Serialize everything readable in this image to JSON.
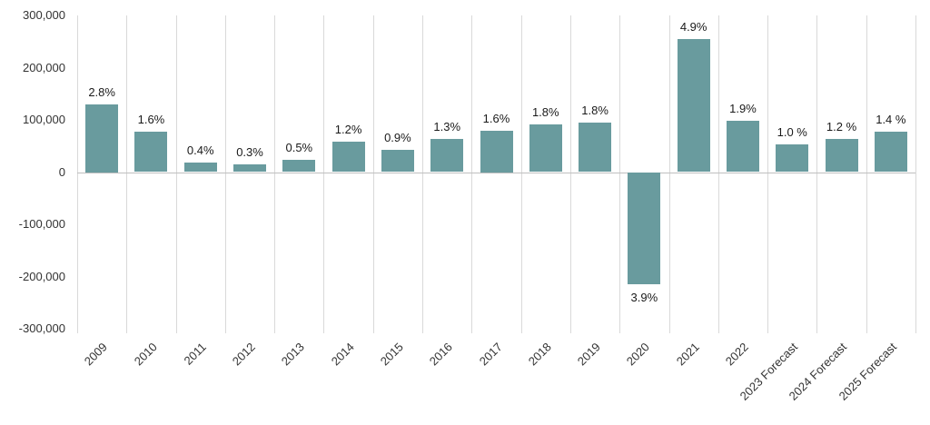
{
  "chart_data": {
    "type": "bar",
    "title": "",
    "xlabel": "",
    "ylabel": "",
    "categories": [
      "2009",
      "2010",
      "2011",
      "2012",
      "2013",
      "2014",
      "2015",
      "2016",
      "2017",
      "2018",
      "2019",
      "2020",
      "2021",
      "2022",
      "2023 Forecast",
      "2024 Forecast",
      "2025 Forecast"
    ],
    "values": [
      130000,
      78000,
      19000,
      14000,
      23000,
      58000,
      43000,
      63000,
      80000,
      92000,
      94000,
      -214000,
      254000,
      98000,
      53000,
      64000,
      77000
    ],
    "bar_labels": [
      "2.8%",
      "1.6%",
      "0.4%",
      "0.3%",
      "0.5%",
      "1.2%",
      "0.9%",
      "1.3%",
      "1.6%",
      "1.8%",
      "1.8%",
      "3.9%",
      "4.9%",
      "1.9%",
      "1.0 %",
      "1.2 %",
      "1.4 %"
    ],
    "ylim": [
      -300000,
      300000
    ],
    "yticks": {
      "values": [
        300000,
        200000,
        100000,
        0,
        -100000,
        -200000,
        -300000
      ],
      "labels": [
        "300,000",
        "200,000",
        "100,000",
        "0",
        "-100,000",
        "-200,000",
        "-300,000"
      ]
    },
    "grid": "vertical-gridlines",
    "legend_position": "none",
    "colors": {
      "bar_fill": "#699b9e",
      "gridline": "#d9d9d9",
      "zero_line": "#bfbfbf",
      "axis_text": "#333333",
      "bar_label_text": "#1a1a1a",
      "background": "#ffffff"
    }
  }
}
